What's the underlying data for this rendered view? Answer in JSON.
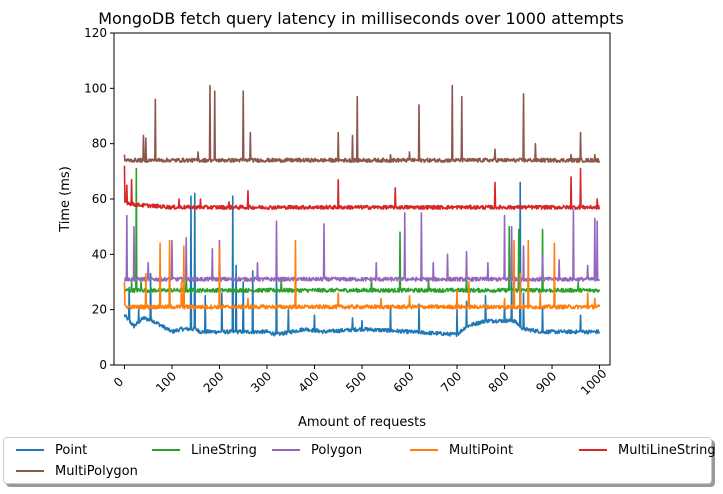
{
  "chart_data": {
    "type": "line",
    "title": "MongoDB fetch query latency in milliseconds over 1000 attempts",
    "xlabel": "Amount of requests",
    "ylabel": "Time (ms)",
    "xlim": [
      -22,
      1022
    ],
    "ylim": [
      0,
      120
    ],
    "xticks": [
      "0",
      "100",
      "200",
      "300",
      "400",
      "500",
      "600",
      "700",
      "800",
      "900",
      "1000"
    ],
    "yticks": [
      "0",
      "20",
      "40",
      "60",
      "80",
      "100",
      "120"
    ],
    "grid": false,
    "legend_position": "bottom",
    "series": [
      {
        "name": "Point",
        "color": "#1f77b4",
        "baseline": [
          [
            0,
            18
          ],
          [
            20,
            14
          ],
          [
            40,
            17
          ],
          [
            60,
            16
          ],
          [
            80,
            14
          ],
          [
            100,
            12
          ],
          [
            120,
            13
          ],
          [
            150,
            13
          ],
          [
            160,
            12
          ],
          [
            300,
            12
          ],
          [
            320,
            11
          ],
          [
            380,
            13
          ],
          [
            420,
            12
          ],
          [
            500,
            13
          ],
          [
            600,
            12
          ],
          [
            700,
            11
          ],
          [
            720,
            14
          ],
          [
            760,
            16
          ],
          [
            800,
            16
          ],
          [
            820,
            16
          ],
          [
            840,
            13
          ],
          [
            880,
            12
          ],
          [
            900,
            12
          ],
          [
            1000,
            12
          ]
        ],
        "spikes": [
          [
            10,
            28
          ],
          [
            30,
            20
          ],
          [
            55,
            33
          ],
          [
            140,
            61
          ],
          [
            148,
            62
          ],
          [
            170,
            25
          ],
          [
            205,
            26
          ],
          [
            228,
            61
          ],
          [
            235,
            36
          ],
          [
            250,
            30
          ],
          [
            270,
            34
          ],
          [
            320,
            34
          ],
          [
            345,
            20
          ],
          [
            400,
            18
          ],
          [
            480,
            17
          ],
          [
            500,
            16
          ],
          [
            560,
            21
          ],
          [
            620,
            22
          ],
          [
            700,
            20
          ],
          [
            720,
            23
          ],
          [
            760,
            25
          ],
          [
            800,
            22
          ],
          [
            815,
            30
          ],
          [
            833,
            66
          ],
          [
            840,
            26
          ],
          [
            880,
            21
          ],
          [
            960,
            18
          ]
        ]
      },
      {
        "name": "LineString",
        "color": "#2ca02c",
        "baseline": [
          [
            0,
            27
          ],
          [
            1000,
            27
          ]
        ],
        "spikes": [
          [
            15,
            30
          ],
          [
            25,
            71
          ],
          [
            35,
            30
          ],
          [
            130,
            33
          ],
          [
            330,
            31
          ],
          [
            520,
            31
          ],
          [
            580,
            48
          ],
          [
            640,
            31
          ],
          [
            720,
            33
          ],
          [
            810,
            50
          ],
          [
            830,
            49
          ],
          [
            880,
            49
          ],
          [
            955,
            30
          ]
        ]
      },
      {
        "name": "Polygon",
        "color": "#9467bd",
        "baseline": [
          [
            0,
            31
          ],
          [
            1000,
            31
          ]
        ],
        "spikes": [
          [
            5,
            54
          ],
          [
            20,
            50
          ],
          [
            50,
            37
          ],
          [
            100,
            45
          ],
          [
            130,
            46
          ],
          [
            185,
            42
          ],
          [
            200,
            45
          ],
          [
            280,
            37
          ],
          [
            320,
            52
          ],
          [
            420,
            51
          ],
          [
            530,
            37
          ],
          [
            590,
            55
          ],
          [
            625,
            55
          ],
          [
            650,
            37
          ],
          [
            680,
            40
          ],
          [
            720,
            41
          ],
          [
            765,
            37
          ],
          [
            800,
            54
          ],
          [
            815,
            50
          ],
          [
            840,
            43
          ],
          [
            880,
            40
          ],
          [
            915,
            38
          ],
          [
            945,
            56
          ],
          [
            975,
            36
          ],
          [
            990,
            53
          ],
          [
            995,
            52
          ]
        ]
      },
      {
        "name": "MultiPoint",
        "color": "#ff7f0e",
        "baseline": [
          [
            0,
            21
          ],
          [
            1000,
            21
          ]
        ],
        "spikes": [
          [
            0,
            30
          ],
          [
            45,
            33
          ],
          [
            75,
            44
          ],
          [
            95,
            45
          ],
          [
            120,
            30
          ],
          [
            125,
            43
          ],
          [
            200,
            43
          ],
          [
            260,
            24
          ],
          [
            360,
            45
          ],
          [
            450,
            26
          ],
          [
            540,
            24
          ],
          [
            600,
            25
          ],
          [
            700,
            27
          ],
          [
            725,
            30
          ],
          [
            800,
            24
          ],
          [
            820,
            45
          ],
          [
            833,
            33
          ],
          [
            850,
            45
          ],
          [
            875,
            26
          ],
          [
            905,
            44
          ],
          [
            975,
            26
          ],
          [
            990,
            24
          ]
        ]
      },
      {
        "name": "MultiLineString",
        "color": "#d62728",
        "baseline": [
          [
            0,
            59
          ],
          [
            20,
            58
          ],
          [
            100,
            57
          ],
          [
            1000,
            57
          ]
        ],
        "spikes": [
          [
            0,
            72
          ],
          [
            5,
            65
          ],
          [
            15,
            67
          ],
          [
            115,
            60
          ],
          [
            160,
            60
          ],
          [
            220,
            59
          ],
          [
            260,
            63
          ],
          [
            450,
            67
          ],
          [
            570,
            64
          ],
          [
            780,
            66
          ],
          [
            940,
            68
          ],
          [
            960,
            71
          ],
          [
            995,
            60
          ]
        ]
      },
      {
        "name": "MultiPolygon",
        "color": "#8c564b",
        "baseline": [
          [
            0,
            74
          ],
          [
            1000,
            74
          ]
        ],
        "spikes": [
          [
            0,
            76
          ],
          [
            40,
            83
          ],
          [
            45,
            82
          ],
          [
            65,
            96
          ],
          [
            155,
            77
          ],
          [
            180,
            101
          ],
          [
            190,
            99
          ],
          [
            250,
            99
          ],
          [
            265,
            84
          ],
          [
            450,
            84
          ],
          [
            480,
            83
          ],
          [
            490,
            97
          ],
          [
            560,
            76
          ],
          [
            600,
            77
          ],
          [
            620,
            94
          ],
          [
            690,
            101
          ],
          [
            710,
            97
          ],
          [
            780,
            78
          ],
          [
            840,
            98
          ],
          [
            865,
            80
          ],
          [
            940,
            76
          ],
          [
            960,
            84
          ],
          [
            990,
            76
          ]
        ]
      }
    ]
  }
}
